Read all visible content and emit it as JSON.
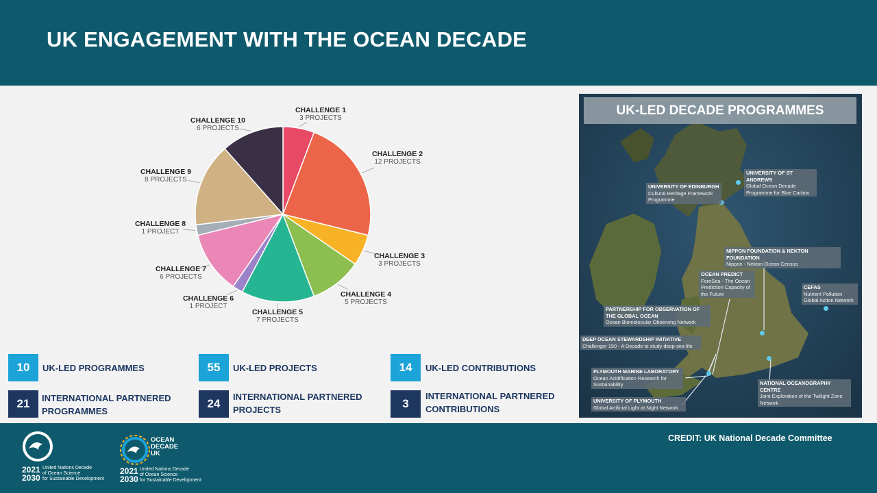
{
  "title": "UK ENGAGEMENT WITH THE OCEAN DECADE",
  "chart_data": {
    "type": "pie",
    "categories": [
      "CHALLENGE 1",
      "CHALLENGE 2",
      "CHALLENGE 3",
      "CHALLENGE 4",
      "CHALLENGE 5",
      "CHALLENGE 6",
      "CHALLENGE 7",
      "CHALLENGE 8",
      "CHALLENGE 9",
      "CHALLENGE 10"
    ],
    "values": [
      3,
      12,
      3,
      5,
      7,
      1,
      6,
      1,
      8,
      6
    ],
    "value_labels": [
      "3 PROJECTS",
      "12 PROJECTS",
      "3 PROJECTS",
      "5 PROJECTS",
      "7 PROJECTS",
      "1 PROJECT",
      "6 PROJECTS",
      "1 PROJECT",
      "8 PROJECTS",
      "6 PROJECTS"
    ],
    "colors": [
      "#e84a66",
      "#ec6549",
      "#f8b225",
      "#8cbf4f",
      "#26b593",
      "#9b82c9",
      "#ea87b7",
      "#a5aeb6",
      "#cfb184",
      "#3a3046"
    ]
  },
  "stats": [
    {
      "value": "10",
      "label": "UK-LED PROGRAMMES"
    },
    {
      "value": "55",
      "label": "UK-LED PROJECTS"
    },
    {
      "value": "14",
      "label": "UK-LED CONTRIBUTIONS"
    },
    {
      "value": "21",
      "label": "INTERNATIONAL PARTNERED PROGRAMMES"
    },
    {
      "value": "24",
      "label": "INTERNATIONAL PARTNERED PROJECTS"
    },
    {
      "value": "3",
      "label": "INTERNATIONAL PARTNERED CONTRIBUTIONS"
    }
  ],
  "map": {
    "title": "UK-LED DECADE PROGRAMMES",
    "annotations": [
      {
        "name": "UNIVERSITY OF ST ANDREWS",
        "desc": "Global Ocean Decade Programme for Blue Carbon"
      },
      {
        "name": "UNIVERSITY OF EDINBURGH",
        "desc": "Cultural Heritage Framework Programme"
      },
      {
        "name": "NIPPON FOUNDATION & NEKTON FOUNDATION",
        "desc": "Nippon - Nekton Ocean Census"
      },
      {
        "name": "OCEAN PREDICT",
        "desc": "ForeSea - The Ocean Prediction Capacity of the Future"
      },
      {
        "name": "CEFAS",
        "desc": "Nutrient Pollution Global Action Network"
      },
      {
        "name": "PARTNERSHIP FOR OBSERVATION OF THE GLOBAL OCEAN",
        "desc": "Ocean Biomolecular Observing Network"
      },
      {
        "name": "DEEP OCEAN STEWARDSHIP INITIATIVE",
        "desc": "Challenger 150 - A Decade to study deep-sea life"
      },
      {
        "name": "PLYMOUTH MARINE LABORATORY",
        "desc": "Ocean Acidification Research for Sustainability"
      },
      {
        "name": "NATIONAL OCEANOGRAPHY CENTRE",
        "desc": "Joint Exploration of the Twilight Zone Network"
      },
      {
        "name": "UNIVERSITY OF PLYMOUTH",
        "desc": "Global Artificial Light at Night Network"
      }
    ]
  },
  "credit": "CREDIT: UK National Decade Committee",
  "logos": [
    {
      "years_top": "2021",
      "years_bottom": "2030",
      "text": [
        "United Nations Decade",
        "of Ocean Science",
        "for Sustainable Development"
      ]
    },
    {
      "brand": [
        "OCEAN",
        "DECADE",
        "UK"
      ],
      "years_top": "2021",
      "years_bottom": "2030",
      "text": [
        "United Nations Decade",
        "of Ocean Science",
        "for Sustainable Development"
      ]
    }
  ]
}
